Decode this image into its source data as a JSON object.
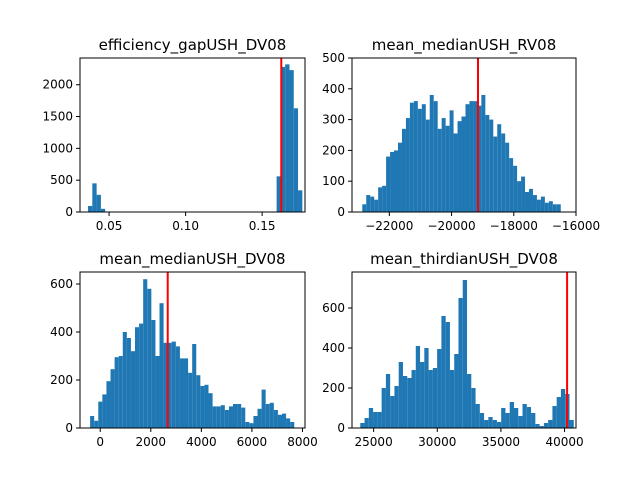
{
  "chart_data": [
    {
      "type": "bar",
      "title": "efficiency_gapUSH_DV08",
      "bar_color": "#1f77b4",
      "line_color": "#ff0000",
      "xlim": [
        0.031,
        0.178
      ],
      "ylim": [
        0,
        2420
      ],
      "xticks": [
        0.05,
        0.1,
        0.15
      ],
      "xtick_labels": [
        "0.05",
        "0.10",
        "0.15"
      ],
      "yticks": [
        0,
        500,
        1000,
        1500,
        2000
      ],
      "ytick_labels": [
        "0",
        "500",
        "1000",
        "1500",
        "2000"
      ],
      "bin_start": 0.03625,
      "bin_width": 0.0028,
      "counts": [
        95,
        450,
        270,
        50,
        0,
        0,
        0,
        0,
        0,
        0,
        0,
        0,
        0,
        0,
        0,
        0,
        0,
        0,
        0,
        0,
        0,
        0,
        0,
        0,
        0,
        0,
        0,
        0,
        0,
        0,
        0,
        0,
        0,
        0,
        0,
        0,
        0,
        0,
        0,
        0,
        0,
        0,
        0,
        0,
        560,
        2280,
        2320,
        2230,
        1630,
        340
      ],
      "vline": 0.1625
    },
    {
      "type": "bar",
      "title": "mean_medianUSH_RV08",
      "bar_color": "#1f77b4",
      "line_color": "#ff0000",
      "xlim": [
        -23200,
        -16000
      ],
      "ylim": [
        0,
        500
      ],
      "xticks": [
        -22000,
        -20000,
        -18000,
        -16000
      ],
      "xtick_labels": [
        "−22000",
        "−20000",
        "−18000",
        "−16000"
      ],
      "yticks": [
        0,
        100,
        200,
        300,
        400,
        500
      ],
      "ytick_labels": [
        "0",
        "100",
        "200",
        "300",
        "400",
        "500"
      ],
      "bin_start": -22870,
      "bin_width": 127.6,
      "counts": [
        25,
        55,
        50,
        40,
        80,
        85,
        180,
        195,
        200,
        225,
        270,
        305,
        355,
        360,
        335,
        350,
        300,
        380,
        360,
        270,
        305,
        280,
        330,
        255,
        295,
        310,
        350,
        360,
        360,
        345,
        380,
        315,
        300,
        245,
        285,
        255,
        225,
        175,
        150,
        100,
        115,
        65,
        75,
        55,
        40,
        50,
        30,
        35,
        25,
        25
      ],
      "vline": -19150
    },
    {
      "type": "bar",
      "title": "mean_medianUSH_DV08",
      "bar_color": "#1f77b4",
      "line_color": "#ff0000",
      "xlim": [
        -800,
        8100
      ],
      "ylim": [
        0,
        650
      ],
      "xticks": [
        0,
        2000,
        4000,
        6000,
        8000
      ],
      "xtick_labels": [
        "0",
        "2000",
        "4000",
        "6000",
        "8000"
      ],
      "yticks": [
        0,
        200,
        400,
        600
      ],
      "ytick_labels": [
        "0",
        "200",
        "400",
        "600"
      ],
      "bin_start": -400,
      "bin_width": 161.5,
      "counts": [
        50,
        30,
        110,
        140,
        195,
        245,
        295,
        300,
        400,
        375,
        320,
        420,
        435,
        620,
        580,
        450,
        300,
        520,
        355,
        355,
        360,
        340,
        290,
        290,
        230,
        350,
        220,
        175,
        180,
        145,
        90,
        90,
        95,
        75,
        90,
        100,
        100,
        85,
        25,
        20,
        50,
        80,
        160,
        100,
        105,
        75,
        55,
        60,
        40,
        25
      ],
      "vline": 2670
    },
    {
      "type": "bar",
      "title": "mean_thirdianUSH_DV08",
      "bar_color": "#1f77b4",
      "line_color": "#ff0000",
      "xlim": [
        23300,
        40900
      ],
      "ylim": [
        0,
        780
      ],
      "xticks": [
        25000,
        30000,
        35000,
        40000
      ],
      "xtick_labels": [
        "25000",
        "30000",
        "35000",
        "40000"
      ],
      "yticks": [
        0,
        200,
        400,
        600
      ],
      "ytick_labels": [
        "0",
        "200",
        "400",
        "600"
      ],
      "bin_start": 23950,
      "bin_width": 335.5,
      "counts": [
        25,
        50,
        100,
        80,
        80,
        200,
        270,
        160,
        210,
        330,
        260,
        250,
        290,
        410,
        330,
        400,
        290,
        300,
        395,
        560,
        530,
        290,
        370,
        650,
        740,
        270,
        200,
        120,
        75,
        40,
        55,
        40,
        30,
        100,
        75,
        130,
        100,
        60,
        120,
        105,
        75,
        20,
        10,
        25,
        40,
        110,
        155,
        195,
        170,
        40
      ],
      "vline": 40200
    }
  ]
}
